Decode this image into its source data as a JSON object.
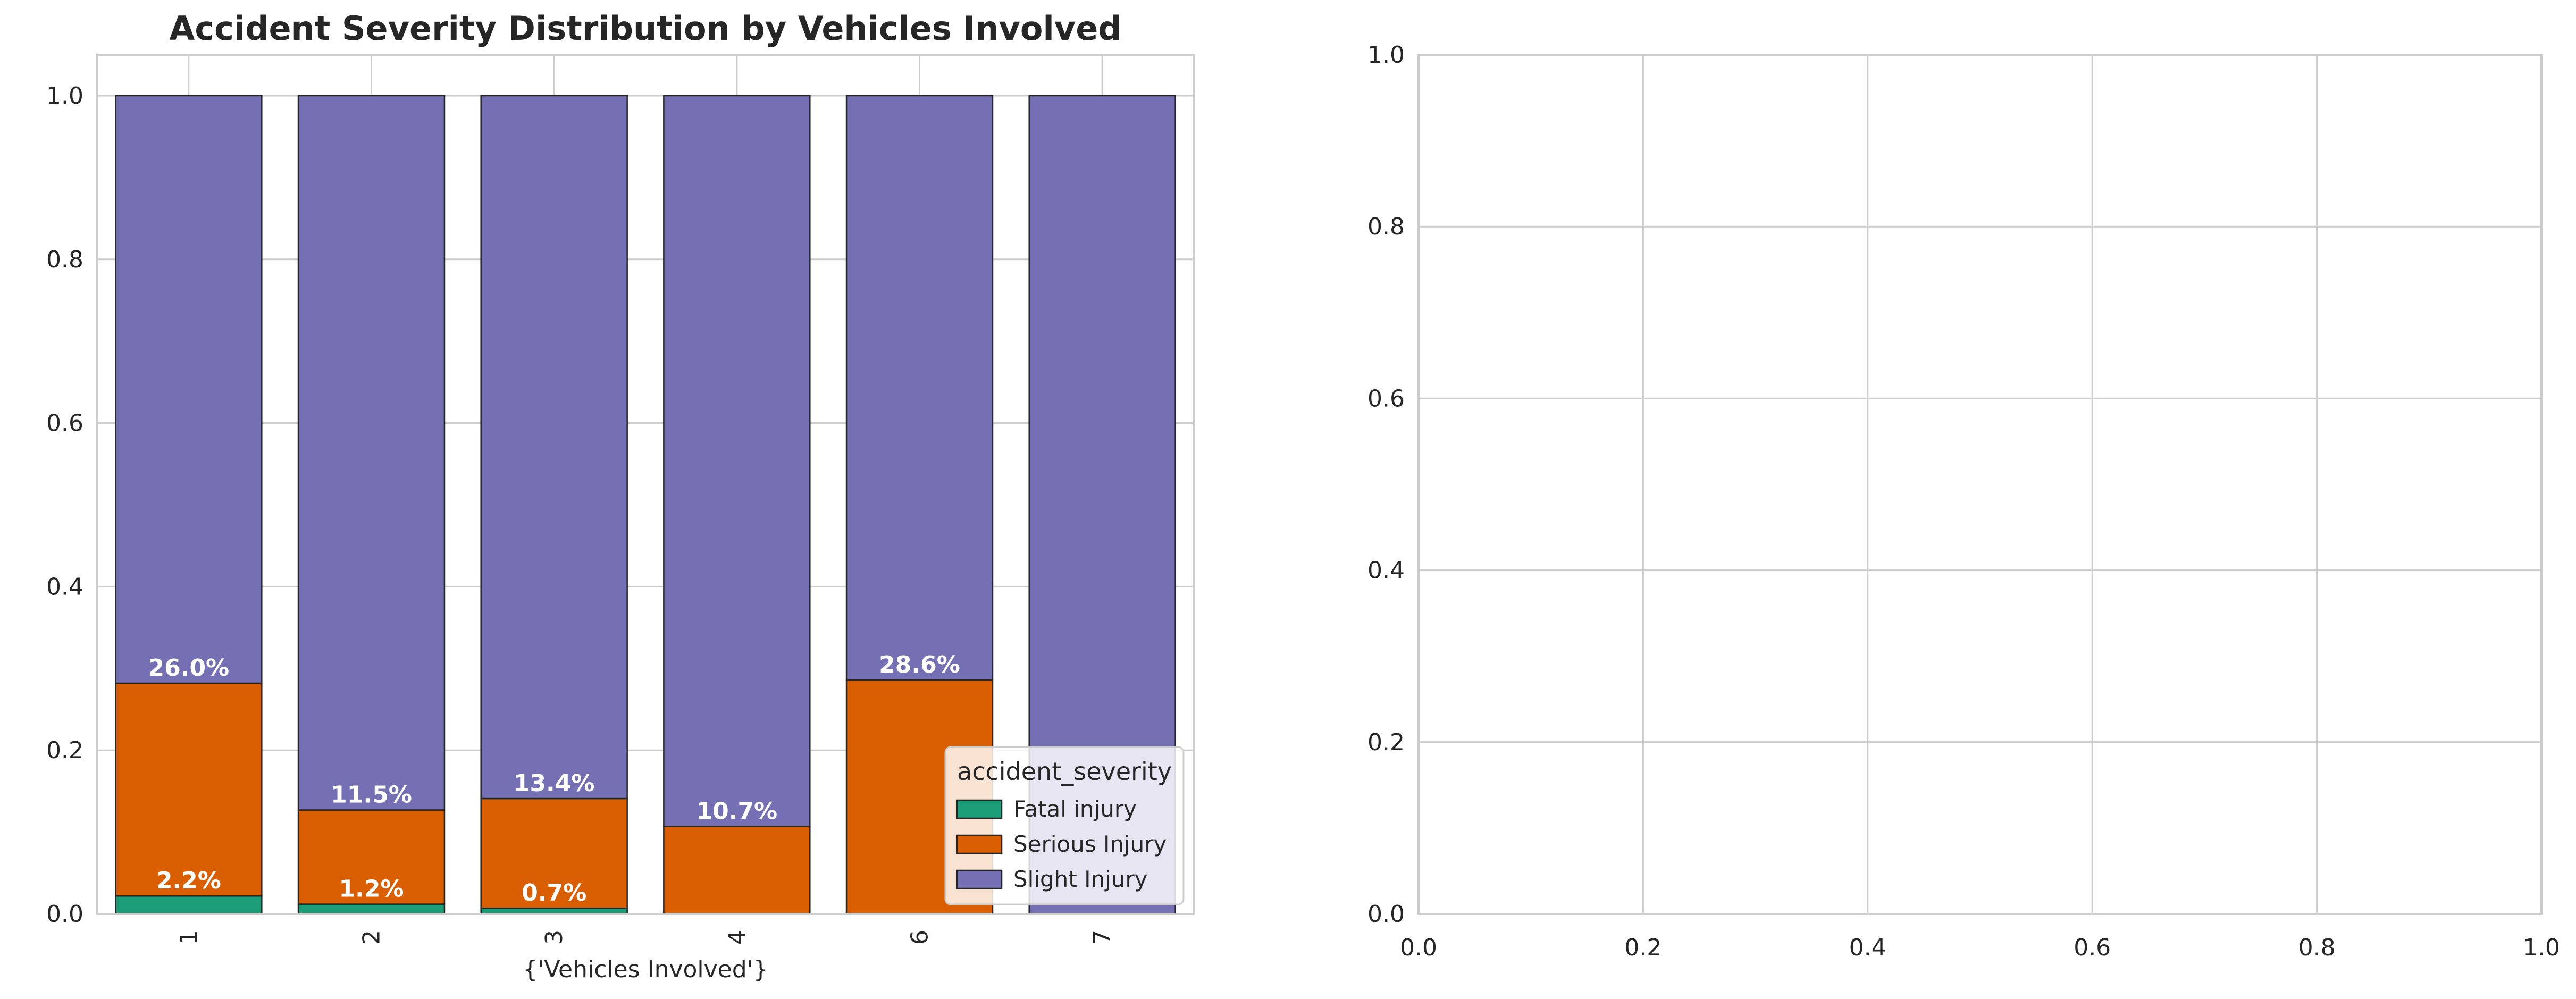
{
  "chart_data": [
    {
      "type": "bar",
      "stacked": true,
      "title": "Accident Severity Distribution by Vehicles Involved",
      "xlabel": "{'Vehicles Involved'}",
      "ylabel": "",
      "categories": [
        "1",
        "2",
        "3",
        "4",
        "6",
        "7"
      ],
      "series": [
        {
          "name": "Fatal injury",
          "color": "#1b9e77",
          "values": [
            0.022,
            0.012,
            0.007,
            0.0,
            0.0,
            0.0
          ]
        },
        {
          "name": "Serious Injury",
          "color": "#d95f02",
          "values": [
            0.26,
            0.115,
            0.134,
            0.107,
            0.286,
            0.0
          ]
        },
        {
          "name": "Slight Injury",
          "color": "#7570b3",
          "values": [
            0.718,
            0.873,
            0.859,
            0.893,
            0.714,
            1.0
          ]
        }
      ],
      "data_labels": [
        {
          "category": "1",
          "series": "Fatal injury",
          "text": "2.2%"
        },
        {
          "category": "1",
          "series": "Serious Injury",
          "text": "26.0%"
        },
        {
          "category": "2",
          "series": "Fatal injury",
          "text": "1.2%"
        },
        {
          "category": "2",
          "series": "Serious Injury",
          "text": "11.5%"
        },
        {
          "category": "3",
          "series": "Fatal injury",
          "text": "0.7%"
        },
        {
          "category": "3",
          "series": "Serious Injury",
          "text": "13.4%"
        },
        {
          "category": "4",
          "series": "Serious Injury",
          "text": "10.7%"
        },
        {
          "category": "6",
          "series": "Serious Injury",
          "text": "28.6%"
        }
      ],
      "ylim": [
        0,
        1.05
      ],
      "yticks": [
        "0.0",
        "0.2",
        "0.4",
        "0.6",
        "0.8",
        "1.0"
      ],
      "xtick_rotation": 90,
      "grid": true,
      "legend": {
        "title": "accident_severity",
        "placement": "lower-right"
      }
    },
    {
      "type": "scatter",
      "empty": true,
      "title": "",
      "xlabel": "",
      "ylabel": "",
      "xlim": [
        0,
        1
      ],
      "ylim": [
        0,
        1
      ],
      "xticks": [
        "0.0",
        "0.2",
        "0.4",
        "0.6",
        "0.8",
        "1.0"
      ],
      "yticks": [
        "0.0",
        "0.2",
        "0.4",
        "0.6",
        "0.8",
        "1.0"
      ],
      "grid": true
    }
  ]
}
